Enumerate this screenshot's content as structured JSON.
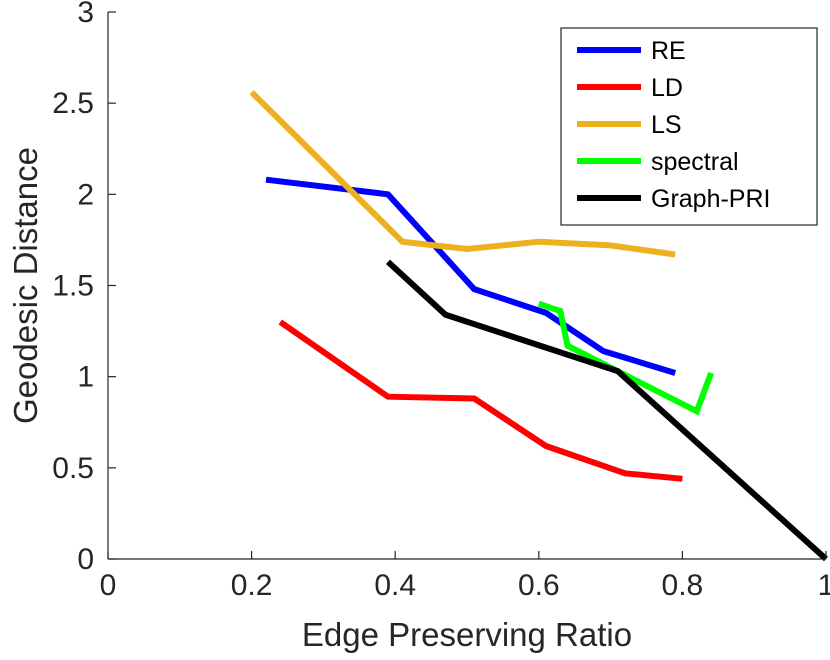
{
  "chart_data": {
    "type": "line",
    "title": "",
    "xlabel": "Edge Preserving Ratio",
    "ylabel": "Geodesic Distance",
    "xlim": [
      0,
      1
    ],
    "ylim": [
      0,
      3
    ],
    "xticks": [
      0,
      0.2,
      0.4,
      0.6,
      0.8,
      1
    ],
    "xtick_labels": [
      "0",
      "0.2",
      "0.4",
      "0.6",
      "0.8",
      "1"
    ],
    "yticks": [
      0,
      0.5,
      1,
      1.5,
      2,
      2.5,
      3
    ],
    "ytick_labels": [
      "0",
      "0.5",
      "1",
      "1.5",
      "2",
      "2.5",
      "3"
    ],
    "grid": false,
    "legend_position": "top-right",
    "series": [
      {
        "name": "RE",
        "color": "#0000ff",
        "x": [
          0.22,
          0.39,
          0.51,
          0.61,
          0.69,
          0.79
        ],
        "y": [
          2.08,
          2.0,
          1.48,
          1.35,
          1.14,
          1.02
        ]
      },
      {
        "name": "LD",
        "color": "#ff0000",
        "x": [
          0.24,
          0.39,
          0.51,
          0.61,
          0.72,
          0.8
        ],
        "y": [
          1.3,
          0.89,
          0.88,
          0.62,
          0.47,
          0.44
        ]
      },
      {
        "name": "LS",
        "color": "#edb120",
        "x": [
          0.2,
          0.41,
          0.5,
          0.6,
          0.7,
          0.79
        ],
        "y": [
          2.56,
          1.74,
          1.7,
          1.74,
          1.72,
          1.67
        ]
      },
      {
        "name": "spectral",
        "color": "#00ff00",
        "x": [
          0.6,
          0.63,
          0.64,
          0.82,
          0.84
        ],
        "y": [
          1.4,
          1.36,
          1.17,
          0.81,
          1.02
        ]
      },
      {
        "name": "Graph-PRI",
        "color": "#000000",
        "x": [
          0.39,
          0.47,
          0.71,
          1.0
        ],
        "y": [
          1.63,
          1.34,
          1.03,
          0.0
        ]
      }
    ]
  }
}
